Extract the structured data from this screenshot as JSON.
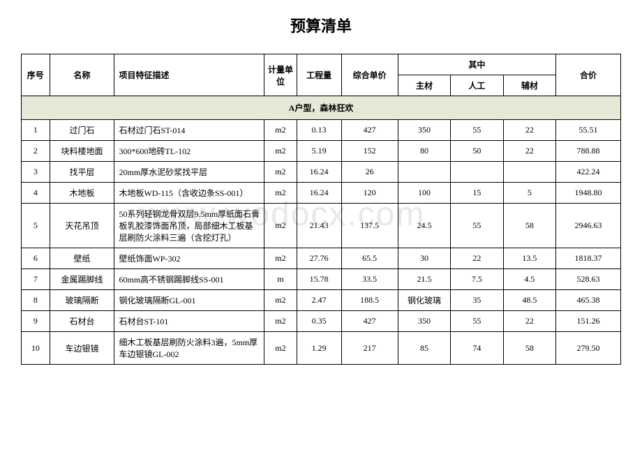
{
  "title": "预算清单",
  "watermark": "www.wodocx.com",
  "headers": {
    "seq": "序号",
    "name": "名称",
    "desc": "项目特征描述",
    "unit": "计量单位",
    "qty": "工程量",
    "price": "综合单价",
    "breakdown": "其中",
    "main": "主材",
    "labor": "人工",
    "aux": "辅材",
    "total": "合价"
  },
  "section": "A户型，森林狂欢",
  "rows": [
    {
      "seq": "1",
      "name": "过门石",
      "desc": "石材过门石ST-014",
      "unit": "m2",
      "qty": "0.13",
      "price": "427",
      "main": "350",
      "labor": "55",
      "aux": "22",
      "total": "55.51"
    },
    {
      "seq": "2",
      "name": "块料楼地面",
      "desc": "300*600地砖TL-102",
      "unit": "m2",
      "qty": "5.19",
      "price": "152",
      "main": "80",
      "labor": "50",
      "aux": "22",
      "total": "788.88"
    },
    {
      "seq": "3",
      "name": "找平层",
      "desc": "20mm厚水泥砂浆找平层",
      "unit": "m2",
      "qty": "16.24",
      "price": "26",
      "main": "",
      "labor": "",
      "aux": "",
      "total": "422.24"
    },
    {
      "seq": "4",
      "name": "木地板",
      "desc": "木地板WD-115（含收边条SS-001）",
      "unit": "m2",
      "qty": "16.24",
      "price": "120",
      "main": "100",
      "labor": "15",
      "aux": "5",
      "total": "1948.80"
    },
    {
      "seq": "5",
      "name": "天花吊顶",
      "desc": "50系列轻钢龙骨双层9.5mm厚纸面石膏板乳胶漆饰面吊顶，局部细木工板基层刷防火涂料三遍（含挖灯孔）",
      "unit": "m2",
      "qty": "21.43",
      "price": "137.5",
      "main": "24.5",
      "labor": "55",
      "aux": "58",
      "total": "2946.63"
    },
    {
      "seq": "6",
      "name": "壁纸",
      "desc": "壁纸饰面WP-302",
      "unit": "m2",
      "qty": "27.76",
      "price": "65.5",
      "main": "30",
      "labor": "22",
      "aux": "13.5",
      "total": "1818.37"
    },
    {
      "seq": "7",
      "name": "金属踢脚线",
      "desc": "60mm高不锈钢踢脚线SS-001",
      "unit": "m",
      "qty": "15.78",
      "price": "33.5",
      "main": "21.5",
      "labor": "7.5",
      "aux": "4.5",
      "total": "528.63"
    },
    {
      "seq": "8",
      "name": "玻璃隔断",
      "desc": "钢化玻璃隔断GL-001",
      "unit": "m2",
      "qty": "2.47",
      "price": "188.5",
      "main": "钢化玻璃",
      "labor": "35",
      "aux": "48.5",
      "total": "465.38"
    },
    {
      "seq": "9",
      "name": "石材台",
      "desc": "石材台ST-101",
      "unit": "m2",
      "qty": "0.35",
      "price": "427",
      "main": "350",
      "labor": "55",
      "aux": "22",
      "total": "151.26"
    },
    {
      "seq": "10",
      "name": "车边银镜",
      "desc": "细木工板基层刷防火涂料3遍，5mm厚车边银镜GL-002",
      "unit": "m2",
      "qty": "1.29",
      "price": "217",
      "main": "85",
      "labor": "74",
      "aux": "58",
      "total": "279.50"
    }
  ],
  "colors": {
    "section_bg": "#e8e8d8",
    "border": "#000000",
    "watermark": "#e8e8e8"
  }
}
